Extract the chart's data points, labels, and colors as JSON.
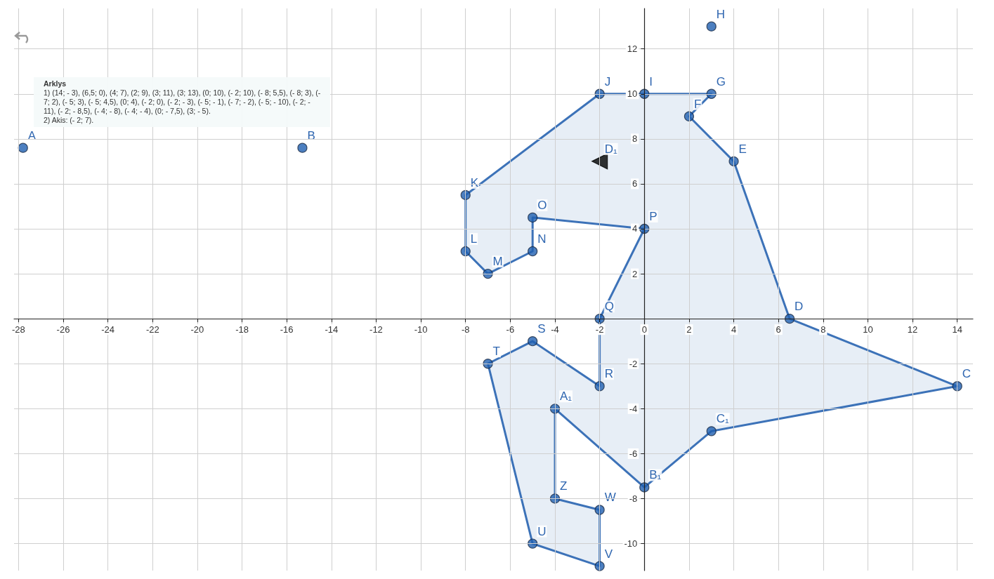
{
  "chart_data": {
    "type": "area",
    "xlim": [
      -28.2,
      14.7
    ],
    "ylim": [
      -11.2,
      13.8
    ],
    "xticks": [
      -28,
      -26,
      -24,
      -22,
      -20,
      -18,
      -16,
      -14,
      -12,
      -10,
      -8,
      -6,
      -4,
      -2,
      0,
      2,
      4,
      6,
      8,
      10,
      12,
      14
    ],
    "yticks": [
      -10,
      -8,
      -6,
      -4,
      -2,
      2,
      4,
      6,
      8,
      10,
      12
    ],
    "grid": true,
    "marker": "circle",
    "series": [
      {
        "color": "#3c72b8",
        "x": [
          14,
          6.5,
          4,
          2,
          3,
          0,
          -2,
          -8,
          -8,
          -7,
          -5,
          -5,
          0,
          -2,
          -2,
          -5,
          -7,
          -5,
          -2,
          -2,
          -4,
          -4,
          0,
          3
        ],
        "values": [
          -3,
          0,
          7,
          9,
          10,
          10,
          10,
          5.5,
          3,
          2,
          3,
          4.5,
          4,
          0,
          -3,
          -1,
          -2,
          -10,
          -11,
          -8.5,
          -8,
          -4,
          -7.5,
          -5
        ]
      },
      {
        "type": "scatter",
        "color": "#1f5fb0",
        "x": [
          -27.8,
          -15.3,
          3
        ],
        "values": [
          7.6,
          7.6,
          13
        ]
      },
      {
        "type": "scatter",
        "marker": "triangle",
        "color": "#000000",
        "x": [
          -2
        ],
        "values": [
          7
        ]
      }
    ],
    "annotations": [
      "Arklys",
      "1) (14; - 3), (6,5; 0), (4; 7), (2; 9), (3; 11), (3; 13), (0; 10), (- 2; 10), (- 8; 5,5), (- 8; 3), (- 7; 2), (- 5; 3), (- 5; 4,5), (0; 4), (- 2; 0), (- 2; - 3), (- 5; - 1), (- 7; - 2), (- 5; - 10), (- 2; - 11), (- 2; - 8,5), (- 4; - 8), (- 4; - 4), (0; - 7,5), (3; - 5).",
      "2) Akis: (- 2; 7).",
      {
        "text": "A",
        "x": -27.8,
        "y": 7.6
      },
      {
        "text": "B",
        "x": -15.3,
        "y": 7.6
      },
      {
        "text": "C",
        "x": 14,
        "y": -3
      },
      {
        "text": "D",
        "x": 6.5,
        "y": 0
      },
      {
        "text": "E",
        "x": 4,
        "y": 7
      },
      {
        "text": "F",
        "x": 2,
        "y": 9
      },
      {
        "text": "G",
        "x": 3,
        "y": 10
      },
      {
        "text": "H",
        "x": 3,
        "y": 13
      },
      {
        "text": "I",
        "x": 0,
        "y": 10
      },
      {
        "text": "J",
        "x": -2,
        "y": 10
      },
      {
        "text": "K",
        "x": -8,
        "y": 5.5
      },
      {
        "text": "L",
        "x": -8,
        "y": 3
      },
      {
        "text": "M",
        "x": -7,
        "y": 2
      },
      {
        "text": "N",
        "x": -5,
        "y": 3
      },
      {
        "text": "O",
        "x": -5,
        "y": 4.5
      },
      {
        "text": "P",
        "x": 0,
        "y": 4
      },
      {
        "text": "Q",
        "x": -2,
        "y": 0
      },
      {
        "text": "R",
        "x": -2,
        "y": -3
      },
      {
        "text": "S",
        "x": -5,
        "y": -1
      },
      {
        "text": "T",
        "x": -7,
        "y": -2
      },
      {
        "text": "U",
        "x": -5,
        "y": -10
      },
      {
        "text": "V",
        "x": -2,
        "y": -11
      },
      {
        "text": "W",
        "x": -2,
        "y": -8.5
      },
      {
        "text": "Z",
        "x": -4,
        "y": -8
      },
      {
        "text": "A₁",
        "x": -4,
        "y": -4
      },
      {
        "text": "B₁",
        "x": 0,
        "y": -7.5
      },
      {
        "text": "C₁",
        "x": 3,
        "y": -5
      },
      {
        "text": "D₁",
        "x": -2,
        "y": 7
      }
    ]
  }
}
